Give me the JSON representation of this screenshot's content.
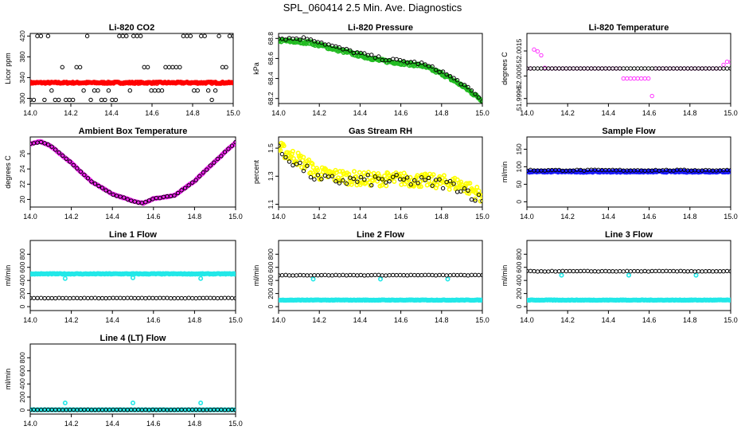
{
  "figure_title": "SPL_060414  2.5 Min. Ave. Diagnostics",
  "chart_data": [
    {
      "id": "co2",
      "type": "scatter",
      "title": "Li-820 CO2",
      "ylabel": "Licor ppm",
      "xlim": [
        14.0,
        15.0
      ],
      "ylim": [
        290,
        425
      ],
      "x_ticks": [
        "14.0",
        "14.2",
        "14.4",
        "14.6",
        "14.8",
        "15.0"
      ],
      "y_ticks": [
        {
          "v": 300,
          "label": "300"
        },
        {
          "v": 340,
          "label": "340"
        },
        {
          "v": 380,
          "label": "380"
        },
        {
          "v": 420,
          "label": "420"
        }
      ],
      "series": [
        {
          "name": "dense",
          "color": "#ff0000",
          "marker": "dense",
          "pattern": "flat",
          "y": 330,
          "noise": 1.5
        },
        {
          "name": "sparse",
          "color": "#000000",
          "marker": "ring",
          "pattern": "levels",
          "levels": [
            297,
            315,
            360,
            420
          ]
        }
      ]
    },
    {
      "id": "pressure",
      "type": "scatter",
      "title": "Li-820 Pressure",
      "ylabel": "kPa",
      "xlim": [
        14.0,
        15.0
      ],
      "ylim": [
        68.15,
        68.85
      ],
      "x_ticks": [
        "14.0",
        "14.2",
        "14.4",
        "14.6",
        "14.8",
        "15.0"
      ],
      "y_ticks": [
        {
          "v": 68.2,
          "label": "68.2"
        },
        {
          "v": 68.4,
          "label": "68.4"
        },
        {
          "v": 68.6,
          "label": "68.6"
        },
        {
          "v": 68.8,
          "label": "68.8"
        }
      ],
      "series": [
        {
          "name": "dense",
          "color": "#22bb22",
          "marker": "dense",
          "pattern": "knots",
          "knots": [
            [
              14.0,
              68.78
            ],
            [
              14.15,
              68.76
            ],
            [
              14.3,
              68.68
            ],
            [
              14.5,
              68.58
            ],
            [
              14.7,
              68.53
            ],
            [
              14.8,
              68.45
            ],
            [
              14.9,
              68.33
            ],
            [
              15.0,
              68.18
            ]
          ],
          "noise": 0.015
        },
        {
          "name": "sparse",
          "color": "#000000",
          "marker": "ring",
          "pattern": "knots",
          "knots": [
            [
              14.0,
              68.8
            ],
            [
              14.15,
              68.8
            ],
            [
              14.3,
              68.7
            ],
            [
              14.5,
              68.6
            ],
            [
              14.7,
              68.55
            ],
            [
              14.8,
              68.47
            ],
            [
              14.9,
              68.35
            ],
            [
              15.0,
              68.18
            ]
          ],
          "noise": 0.015
        }
      ]
    },
    {
      "id": "licor_temp",
      "type": "scatter",
      "title": "Li-820 Temperature",
      "ylabel": "degrees C",
      "xlim": [
        14.0,
        15.0
      ],
      "ylim": [
        51.9994,
        52.0022
      ],
      "x_ticks": [
        "14.0",
        "14.2",
        "14.4",
        "14.6",
        "14.8",
        "15.0"
      ],
      "y_ticks": [
        {
          "v": 51.9996,
          "label": "51.9996"
        },
        {
          "v": 52.0005,
          "label": "52.0005"
        },
        {
          "v": 52.0015,
          "label": "52.0015"
        }
      ],
      "series": [
        {
          "name": "dense",
          "color": "#ff33ff",
          "marker": "ring",
          "pattern": "licor_temp",
          "y": 52.0008
        },
        {
          "name": "sparse",
          "color": "#000000",
          "marker": "ring",
          "pattern": "flat",
          "y": 52.0008,
          "noise": 0
        }
      ]
    },
    {
      "id": "box_temp",
      "type": "scatter",
      "title": "Ambient Box Temperature",
      "ylabel": "degrees C",
      "xlim": [
        14.0,
        15.0
      ],
      "ylim": [
        19.0,
        28.2
      ],
      "x_ticks": [
        "14.0",
        "14.2",
        "14.4",
        "14.6",
        "14.8",
        "15.0"
      ],
      "y_ticks": [
        {
          "v": 20,
          "label": "20"
        },
        {
          "v": 22,
          "label": "22"
        },
        {
          "v": 24,
          "label": "24"
        },
        {
          "v": 26,
          "label": "26"
        }
      ],
      "series": [
        {
          "name": "dense",
          "color": "#ee22ee",
          "marker": "dense",
          "pattern": "knots",
          "knots": [
            [
              14.0,
              27.3
            ],
            [
              14.05,
              27.6
            ],
            [
              14.1,
              27.0
            ],
            [
              14.2,
              24.8
            ],
            [
              14.3,
              22.3
            ],
            [
              14.4,
              20.7
            ],
            [
              14.5,
              19.8
            ],
            [
              14.55,
              19.5
            ],
            [
              14.6,
              20.1
            ],
            [
              14.7,
              20.5
            ],
            [
              14.8,
              22.4
            ],
            [
              14.9,
              25.0
            ],
            [
              15.0,
              27.5
            ]
          ],
          "noise": 0.05
        },
        {
          "name": "sparse",
          "color": "#000000",
          "marker": "ring",
          "pattern": "knots",
          "knots": [
            [
              14.0,
              27.3
            ],
            [
              14.05,
              27.6
            ],
            [
              14.1,
              27.0
            ],
            [
              14.2,
              24.8
            ],
            [
              14.3,
              22.3
            ],
            [
              14.4,
              20.7
            ],
            [
              14.5,
              19.8
            ],
            [
              14.55,
              19.5
            ],
            [
              14.6,
              20.1
            ],
            [
              14.7,
              20.5
            ],
            [
              14.8,
              22.4
            ],
            [
              14.9,
              25.0
            ],
            [
              15.0,
              27.5
            ]
          ],
          "noise": 0.05
        }
      ]
    },
    {
      "id": "rh",
      "type": "scatter",
      "title": "Gas Stream RH",
      "ylabel": "percent",
      "xlim": [
        14.0,
        15.0
      ],
      "ylim": [
        1.08,
        1.58
      ],
      "x_ticks": [
        "14.0",
        "14.2",
        "14.4",
        "14.6",
        "14.8",
        "15.0"
      ],
      "y_ticks": [
        {
          "v": 1.1,
          "label": "1.1"
        },
        {
          "v": 1.3,
          "label": "1.3"
        },
        {
          "v": 1.5,
          "label": "1.5"
        }
      ],
      "series": [
        {
          "name": "dense",
          "color": "#ffff00",
          "marker": "dense",
          "pattern": "knots",
          "knots": [
            [
              14.0,
              1.5
            ],
            [
              14.1,
              1.42
            ],
            [
              14.2,
              1.32
            ],
            [
              14.4,
              1.28
            ],
            [
              14.6,
              1.28
            ],
            [
              14.8,
              1.26
            ],
            [
              14.9,
              1.24
            ],
            [
              15.0,
              1.16
            ]
          ],
          "noise": 0.05
        },
        {
          "name": "sparse",
          "color": "#000000",
          "marker": "ring",
          "pattern": "knots",
          "knots": [
            [
              14.0,
              1.48
            ],
            [
              14.1,
              1.38
            ],
            [
              14.2,
              1.27
            ],
            [
              14.4,
              1.27
            ],
            [
              14.6,
              1.27
            ],
            [
              14.8,
              1.25
            ],
            [
              14.9,
              1.22
            ],
            [
              15.0,
              1.12
            ]
          ],
          "noise": 0.04
        }
      ]
    },
    {
      "id": "sample_flow",
      "type": "scatter",
      "title": "Sample Flow",
      "ylabel": "ml/min",
      "xlim": [
        14.0,
        15.0
      ],
      "ylim": [
        -15,
        185
      ],
      "x_ticks": [
        "14.0",
        "14.2",
        "14.4",
        "14.6",
        "14.8",
        "15.0"
      ],
      "y_ticks": [
        {
          "v": 0,
          "label": "0"
        },
        {
          "v": 50,
          "label": "50"
        },
        {
          "v": 100,
          "label": "100"
        },
        {
          "v": 150,
          "label": "150"
        }
      ],
      "series": [
        {
          "name": "dense",
          "color": "#1a1aff",
          "marker": "dense",
          "pattern": "flat",
          "y": 86,
          "noise": 2
        },
        {
          "name": "sparse",
          "color": "#000000",
          "marker": "ring",
          "pattern": "flat",
          "y": 90,
          "noise": 1.5
        }
      ]
    },
    {
      "id": "line1",
      "type": "scatter",
      "title": "Line 1 Flow",
      "ylabel": "ml/min",
      "xlim": [
        14.0,
        15.0
      ],
      "ylim": [
        -60,
        1010
      ],
      "x_ticks": [
        "14.0",
        "14.2",
        "14.4",
        "14.6",
        "14.8",
        "15.0"
      ],
      "y_ticks": [
        {
          "v": 0,
          "label": "0"
        },
        {
          "v": 200,
          "label": "200"
        },
        {
          "v": 400,
          "label": "400"
        },
        {
          "v": 600,
          "label": "600"
        },
        {
          "v": 800,
          "label": "800"
        }
      ],
      "series": [
        {
          "name": "dense",
          "color": "#22e8e8",
          "marker": "dense",
          "pattern": "flat",
          "y": 500,
          "noise": 6,
          "blips": [
            [
              14.17,
              430
            ],
            [
              14.5,
              440
            ],
            [
              14.83,
              430
            ]
          ]
        },
        {
          "name": "sparse",
          "color": "#000000",
          "marker": "ring",
          "pattern": "flat",
          "y": 130,
          "noise": 3
        }
      ]
    },
    {
      "id": "line2",
      "type": "scatter",
      "title": "Line 2 Flow",
      "ylabel": "ml/min",
      "xlim": [
        14.0,
        15.0
      ],
      "ylim": [
        -60,
        1010
      ],
      "x_ticks": [
        "14.0",
        "14.2",
        "14.4",
        "14.6",
        "14.8",
        "15.0"
      ],
      "y_ticks": [
        {
          "v": 0,
          "label": "0"
        },
        {
          "v": 200,
          "label": "200"
        },
        {
          "v": 400,
          "label": "400"
        },
        {
          "v": 600,
          "label": "600"
        },
        {
          "v": 800,
          "label": "800"
        }
      ],
      "series": [
        {
          "name": "dense",
          "color": "#22e8e8",
          "marker": "dense",
          "pattern": "flat",
          "y": 100,
          "noise": 4,
          "blips": [
            [
              14.17,
              420
            ],
            [
              14.5,
              420
            ],
            [
              14.83,
              420
            ]
          ]
        },
        {
          "name": "sparse",
          "color": "#000000",
          "marker": "ring",
          "pattern": "flat",
          "y": 480,
          "noise": 4
        }
      ]
    },
    {
      "id": "line3",
      "type": "scatter",
      "title": "Line 3 Flow",
      "ylabel": "ml/min",
      "xlim": [
        14.0,
        15.0
      ],
      "ylim": [
        -60,
        1010
      ],
      "x_ticks": [
        "14.0",
        "14.2",
        "14.4",
        "14.6",
        "14.8",
        "15.0"
      ],
      "y_ticks": [
        {
          "v": 0,
          "label": "0"
        },
        {
          "v": 200,
          "label": "200"
        },
        {
          "v": 400,
          "label": "400"
        },
        {
          "v": 600,
          "label": "600"
        },
        {
          "v": 800,
          "label": "800"
        }
      ],
      "series": [
        {
          "name": "dense",
          "color": "#22e8e8",
          "marker": "dense",
          "pattern": "flat",
          "y": 100,
          "noise": 4,
          "blips": [
            [
              14.17,
              480
            ],
            [
              14.5,
              480
            ],
            [
              14.83,
              480
            ]
          ]
        },
        {
          "name": "sparse",
          "color": "#000000",
          "marker": "ring",
          "pattern": "flat",
          "y": 540,
          "noise": 4
        }
      ]
    },
    {
      "id": "line4",
      "type": "scatter",
      "title": "Line 4 (LT) Flow",
      "ylabel": "ml/min",
      "xlim": [
        14.0,
        15.0
      ],
      "ylim": [
        -60,
        1010
      ],
      "x_ticks": [
        "14.0",
        "14.2",
        "14.4",
        "14.6",
        "14.8",
        "15.0"
      ],
      "y_ticks": [
        {
          "v": 0,
          "label": "0"
        },
        {
          "v": 200,
          "label": "200"
        },
        {
          "v": 400,
          "label": "400"
        },
        {
          "v": 600,
          "label": "600"
        },
        {
          "v": 800,
          "label": "800"
        }
      ],
      "series": [
        {
          "name": "dense",
          "color": "#22e8e8",
          "marker": "dense",
          "pattern": "flat",
          "y": 5,
          "noise": 2,
          "blips": [
            [
              14.17,
              110
            ],
            [
              14.5,
              110
            ],
            [
              14.83,
              110
            ]
          ]
        },
        {
          "name": "sparse",
          "color": "#000000",
          "marker": "ring",
          "pattern": "flat",
          "y": 5,
          "noise": 2
        }
      ]
    }
  ]
}
